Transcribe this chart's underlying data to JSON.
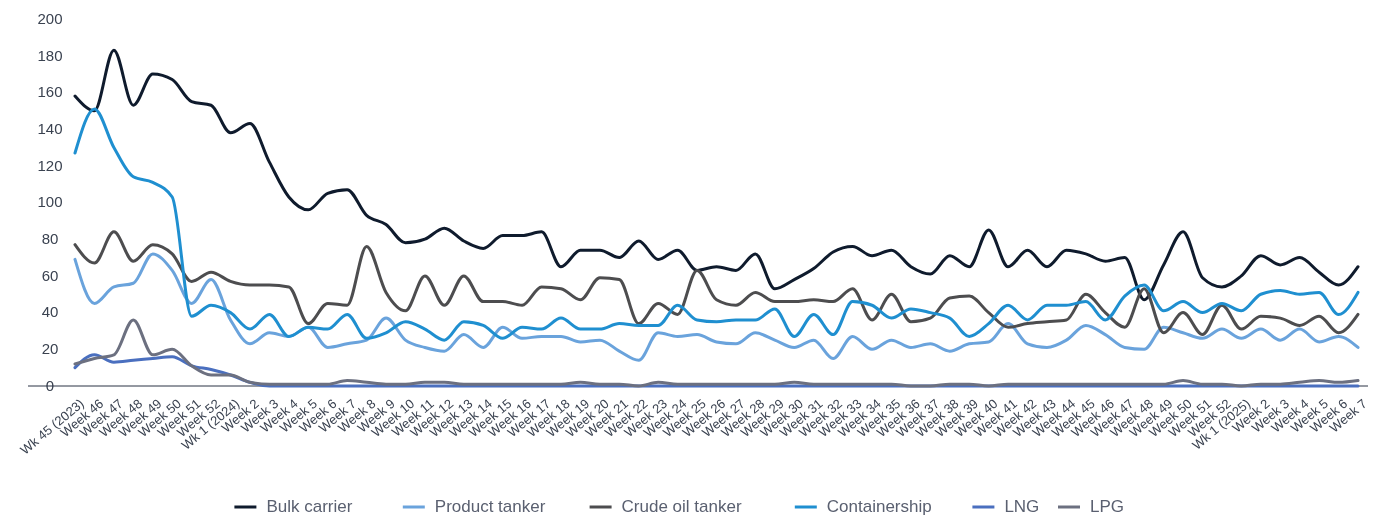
{
  "chart_data": {
    "type": "line",
    "categories": [
      "Wk 45 (2023)",
      "Week 46",
      "Week 47",
      "Week 48",
      "Week 49",
      "Week 50",
      "Week 51",
      "Week 52",
      "Wk 1 (2024)",
      "Week 2",
      "Week 3",
      "Week 4",
      "Week 5",
      "Week 6",
      "Week 7",
      "Week 8",
      "Week 9",
      "Week 10",
      "Week 11",
      "Week 12",
      "Week 13",
      "Week 14",
      "Week 15",
      "Week 16",
      "Week 17",
      "Week 18",
      "Week 19",
      "Week 20",
      "Week 21",
      "Week 22",
      "Week 23",
      "Week 24",
      "Week 25",
      "Week 26",
      "Week 27",
      "Week 28",
      "Week 29",
      "Week 30",
      "Week 31",
      "Week 32",
      "Week 33",
      "Week 34",
      "Week 35",
      "Week 36",
      "Week 37",
      "Week 38",
      "Week 39",
      "Week 40",
      "Week 41",
      "Week 42",
      "Week 43",
      "Week 44",
      "Week 45",
      "Week 46",
      "Week 47",
      "Week 48",
      "Week 49",
      "Week 50",
      "Week 51",
      "Week 52",
      "Wk 1 (2025)",
      "Week 2",
      "Week 3",
      "Week 4",
      "Week 5",
      "Week 6",
      "Week 7"
    ],
    "series": [
      {
        "name": "Bulk carrier",
        "color": "#0f1b2d",
        "values": [
          158,
          150,
          183,
          153,
          170,
          167,
          155,
          153,
          138,
          143,
          122,
          103,
          96,
          105,
          107,
          93,
          88,
          78,
          80,
          86,
          79,
          75,
          82,
          82,
          84,
          65,
          74,
          74,
          70,
          79,
          69,
          74,
          63,
          65,
          63,
          72,
          53,
          58,
          64,
          73,
          76,
          71,
          74,
          65,
          61,
          71,
          65,
          85,
          65,
          74,
          65,
          74,
          72,
          68,
          70,
          47,
          66,
          84,
          59,
          54,
          60,
          71,
          66,
          70,
          62,
          55,
          65
        ]
      },
      {
        "name": "Product tanker",
        "color": "#6aa3dc",
        "values": [
          69,
          45,
          54,
          56,
          72,
          63,
          45,
          58,
          36,
          23,
          29,
          27,
          32,
          21,
          23,
          25,
          37,
          25,
          21,
          19,
          28,
          21,
          32,
          26,
          27,
          27,
          24,
          25,
          19,
          14,
          29,
          27,
          28,
          24,
          23,
          29,
          25,
          21,
          25,
          15,
          27,
          20,
          25,
          21,
          23,
          19,
          23,
          24,
          34,
          23,
          21,
          25,
          33,
          28,
          21,
          20,
          32,
          29,
          26,
          31,
          26,
          31,
          25,
          31,
          24,
          27,
          21
        ]
      },
      {
        "name": "Crude oil tanker",
        "color": "#4d4d4f",
        "values": [
          77,
          67,
          84,
          68,
          77,
          72,
          57,
          62,
          57,
          55,
          55,
          54,
          34,
          45,
          44,
          76,
          51,
          41,
          60,
          44,
          60,
          46,
          46,
          44,
          54,
          53,
          47,
          59,
          58,
          34,
          45,
          39,
          63,
          47,
          44,
          51,
          46,
          46,
          47,
          46,
          53,
          36,
          50,
          35,
          37,
          48,
          49,
          40,
          32,
          34,
          35,
          36,
          50,
          40,
          32,
          53,
          29,
          40,
          28,
          44,
          31,
          38,
          37,
          33,
          38,
          29,
          39
        ]
      },
      {
        "name": "Containership",
        "color": "#1f8fd0",
        "values": [
          127,
          151,
          130,
          114,
          111,
          103,
          38,
          44,
          40,
          31,
          39,
          27,
          32,
          31,
          39,
          26,
          29,
          35,
          31,
          25,
          35,
          33,
          26,
          32,
          31,
          37,
          31,
          31,
          34,
          33,
          33,
          44,
          36,
          35,
          36,
          36,
          42,
          27,
          39,
          28,
          46,
          44,
          37,
          42,
          40,
          37,
          27,
          34,
          44,
          36,
          44,
          44,
          46,
          36,
          49,
          55,
          41,
          46,
          40,
          45,
          41,
          50,
          52,
          50,
          51,
          39,
          51
        ]
      },
      {
        "name": "LNG",
        "color": "#4a6fbf",
        "values": [
          10,
          17,
          13,
          14,
          15,
          16,
          11,
          9,
          6,
          2,
          0,
          0,
          0,
          0,
          0,
          0,
          0,
          0,
          0,
          0,
          0,
          0,
          0,
          0,
          0,
          0,
          0,
          0,
          0,
          0,
          0,
          0,
          0,
          0,
          0,
          0,
          0,
          0,
          0,
          0,
          0,
          0,
          0,
          0,
          0,
          0,
          0,
          0,
          0,
          0,
          0,
          0,
          0,
          0,
          0,
          0,
          0,
          0,
          0,
          0,
          0,
          0,
          0,
          0,
          0,
          0,
          0
        ]
      },
      {
        "name": "LPG",
        "color": "#6c7080",
        "values": [
          12,
          15,
          17,
          36,
          17,
          20,
          11,
          6,
          6,
          2,
          1,
          1,
          1,
          1,
          3,
          2,
          1,
          1,
          2,
          2,
          1,
          1,
          1,
          1,
          1,
          1,
          2,
          1,
          1,
          0,
          2,
          1,
          1,
          1,
          1,
          1,
          1,
          2,
          1,
          1,
          1,
          1,
          1,
          0,
          0,
          1,
          1,
          0,
          1,
          1,
          1,
          1,
          1,
          1,
          1,
          1,
          1,
          3,
          1,
          1,
          0,
          1,
          1,
          2,
          3,
          2,
          3
        ]
      }
    ],
    "ylim": [
      0,
      200
    ],
    "yticks": [
      0,
      20,
      40,
      60,
      80,
      100,
      120,
      140,
      160,
      180,
      200
    ],
    "grid": false,
    "legend": "bottom",
    "marker": "none",
    "line_style": "solid"
  }
}
